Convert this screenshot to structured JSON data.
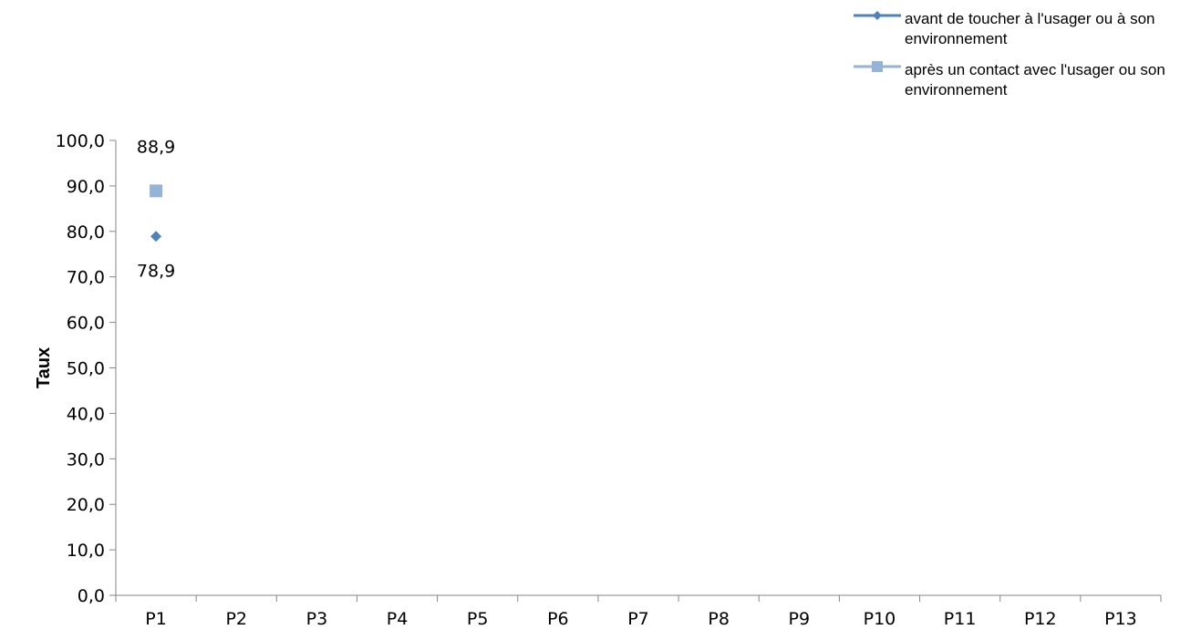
{
  "chart_data": {
    "type": "line",
    "categories": [
      "P1",
      "P2",
      "P3",
      "P4",
      "P5",
      "P6",
      "P7",
      "P8",
      "P9",
      "P10",
      "P11",
      "P12",
      "P13"
    ],
    "series": [
      {
        "name": "avant de toucher à l'usager ou à son environnement",
        "values": [
          78.9,
          null,
          null,
          null,
          null,
          null,
          null,
          null,
          null,
          null,
          null,
          null,
          null
        ],
        "data_labels": [
          "78,9",
          "",
          "",
          "",
          "",
          "",
          "",
          "",
          "",
          "",
          "",
          "",
          ""
        ],
        "color": "#4F81BD",
        "marker": "diamond"
      },
      {
        "name": "après un contact avec l'usager ou son environnement",
        "values": [
          88.9,
          null,
          null,
          null,
          null,
          null,
          null,
          null,
          null,
          null,
          null,
          null,
          null
        ],
        "data_labels": [
          "88,9",
          "",
          "",
          "",
          "",
          "",
          "",
          "",
          "",
          "",
          "",
          "",
          ""
        ],
        "color": "#95B3D7",
        "marker": "square"
      }
    ],
    "ylabel": "Taux",
    "xlabel": "",
    "ylim": [
      0,
      100
    ],
    "y_ticks": [
      "0,0",
      "10,0",
      "20,0",
      "30,0",
      "40,0",
      "50,0",
      "60,0",
      "70,0",
      "80,0",
      "90,0",
      "100,0"
    ],
    "grid": false,
    "legend_position": "top-right"
  }
}
